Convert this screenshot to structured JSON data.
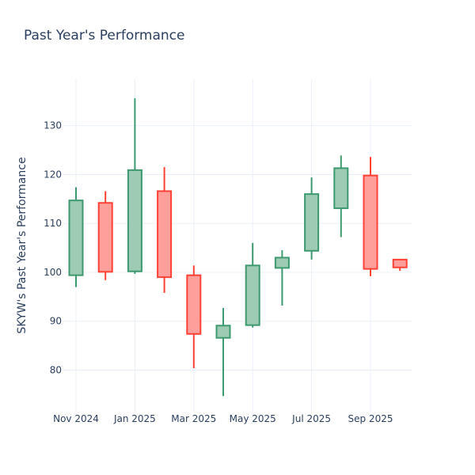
{
  "chart_data": {
    "type": "candlestick",
    "title": "Past Year's Performance",
    "xlabel": "",
    "ylabel": "SKYW's Past Year's Performance",
    "ylim": [
      71.5,
      139.5
    ],
    "y_ticks": [
      80,
      90,
      100,
      110,
      120,
      130
    ],
    "x_ticks": [
      "Nov 2024",
      "Jan 2025",
      "Mar 2025",
      "May 2025",
      "Jul 2025",
      "Sep 2025"
    ],
    "x_tick_months": [
      0,
      2,
      4,
      6,
      8,
      10
    ],
    "increasing_color": "#3d9970",
    "increasing_fill": "#9ecbb3",
    "decreasing_color": "#ff4136",
    "decreasing_fill": "#ff9f9b",
    "candles": [
      {
        "period": "2024-11",
        "month_index": 0,
        "open": 99.4,
        "high": 117.4,
        "low": 97.0,
        "close": 114.7
      },
      {
        "period": "2024-12",
        "month_index": 1,
        "open": 114.2,
        "high": 116.6,
        "low": 98.4,
        "close": 100.1
      },
      {
        "period": "2025-01",
        "month_index": 2,
        "open": 100.2,
        "high": 135.6,
        "low": 99.7,
        "close": 120.9
      },
      {
        "period": "2025-02",
        "month_index": 3,
        "open": 116.6,
        "high": 121.5,
        "low": 95.8,
        "close": 99.0
      },
      {
        "period": "2025-03",
        "month_index": 4,
        "open": 99.4,
        "high": 101.4,
        "low": 80.4,
        "close": 87.4
      },
      {
        "period": "2025-04",
        "month_index": 5,
        "open": 86.6,
        "high": 92.7,
        "low": 74.7,
        "close": 89.1
      },
      {
        "period": "2025-05",
        "month_index": 6,
        "open": 89.2,
        "high": 106.0,
        "low": 88.7,
        "close": 101.4
      },
      {
        "period": "2025-06",
        "month_index": 7,
        "open": 100.9,
        "high": 104.5,
        "low": 93.2,
        "close": 103.0
      },
      {
        "period": "2025-07",
        "month_index": 8,
        "open": 104.4,
        "high": 119.4,
        "low": 102.6,
        "close": 116.0
      },
      {
        "period": "2025-08",
        "month_index": 9,
        "open": 113.1,
        "high": 123.9,
        "low": 107.2,
        "close": 121.3
      },
      {
        "period": "2025-09",
        "month_index": 10,
        "open": 119.8,
        "high": 123.6,
        "low": 99.2,
        "close": 100.7
      },
      {
        "period": "2025-10",
        "month_index": 11,
        "open": 102.6,
        "high": 102.6,
        "low": 100.3,
        "close": 101.0
      }
    ]
  }
}
